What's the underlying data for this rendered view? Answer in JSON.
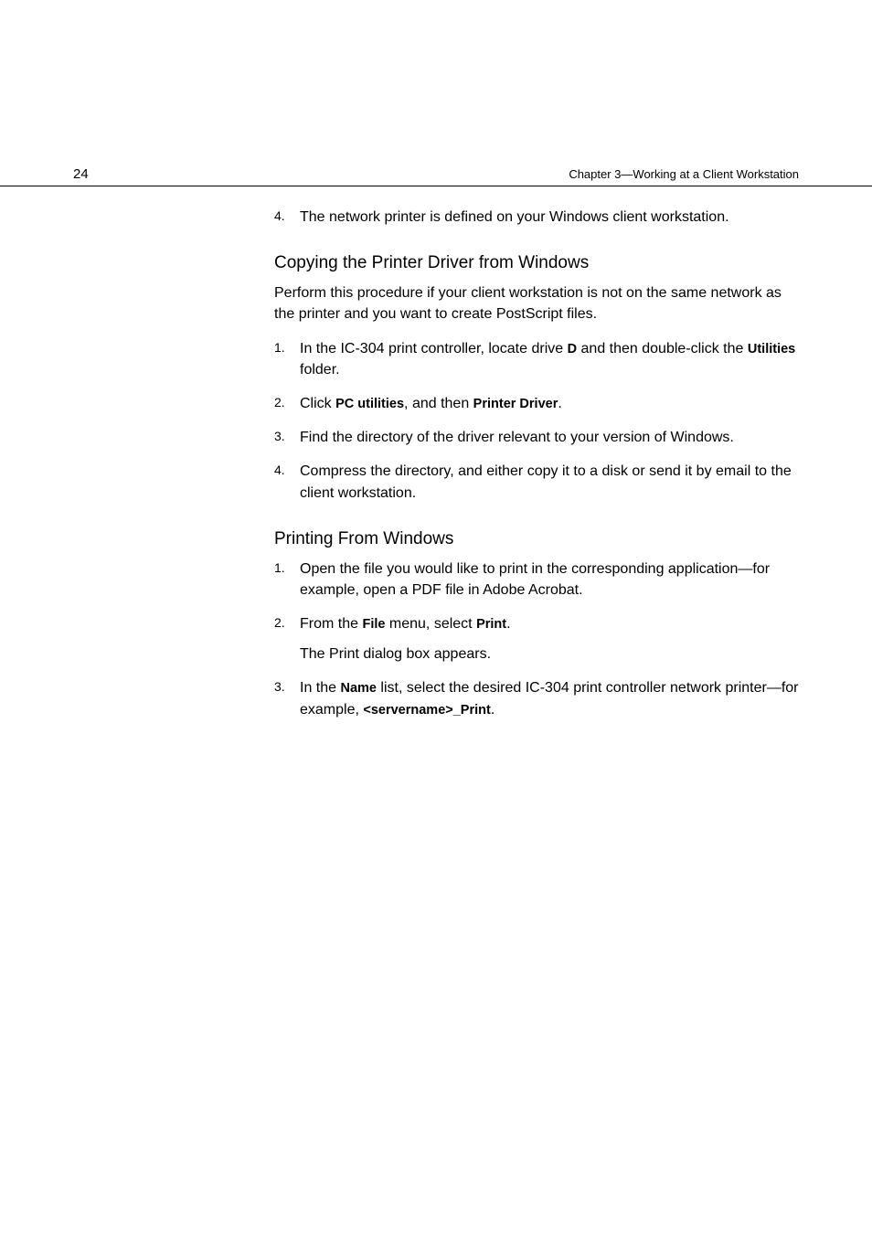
{
  "header": {
    "page_number": "24",
    "chapter_label": "Chapter 3—Working at a Client Workstation"
  },
  "intro_step": {
    "num": "4.",
    "text_a": "The network printer is defined on your Windows client workstation."
  },
  "section1": {
    "heading": "Copying the Printer Driver from Windows",
    "intro": "Perform this procedure if your client workstation is not on the same network as the printer and you want to create PostScript files.",
    "steps": [
      {
        "num": "1.",
        "parts": [
          {
            "t": "In the IC-304 print controller, locate drive "
          },
          {
            "t": "D",
            "ui": true
          },
          {
            "t": " and then double-click the "
          },
          {
            "t": "Utilities",
            "ui": true
          },
          {
            "t": " folder."
          }
        ]
      },
      {
        "num": "2.",
        "parts": [
          {
            "t": "Click "
          },
          {
            "t": "PC utilities",
            "ui": true
          },
          {
            "t": ", and then "
          },
          {
            "t": "Printer Driver",
            "ui": true
          },
          {
            "t": "."
          }
        ]
      },
      {
        "num": "3.",
        "parts": [
          {
            "t": "Find the directory of the driver relevant to your version of Windows."
          }
        ]
      },
      {
        "num": "4.",
        "parts": [
          {
            "t": "Compress the directory, and either copy it to a disk or send it by email to the client workstation."
          }
        ]
      }
    ]
  },
  "section2": {
    "heading": "Printing From Windows",
    "steps": [
      {
        "num": "1.",
        "parts": [
          {
            "t": "Open the file you would like to print in the corresponding application—for example, open a PDF file in Adobe Acrobat."
          }
        ]
      },
      {
        "num": "2.",
        "parts": [
          {
            "t": "From the "
          },
          {
            "t": "File",
            "ui": true
          },
          {
            "t": " menu, select "
          },
          {
            "t": "Print",
            "ui": true
          },
          {
            "t": "."
          }
        ],
        "sub": "The Print dialog box appears."
      },
      {
        "num": "3.",
        "parts": [
          {
            "t": "In the "
          },
          {
            "t": "Name",
            "ui": true
          },
          {
            "t": " list, select the desired IC-304 print controller network printer—for example, "
          },
          {
            "t": "<servername>_Print",
            "ui": true
          },
          {
            "t": "."
          }
        ]
      }
    ]
  }
}
